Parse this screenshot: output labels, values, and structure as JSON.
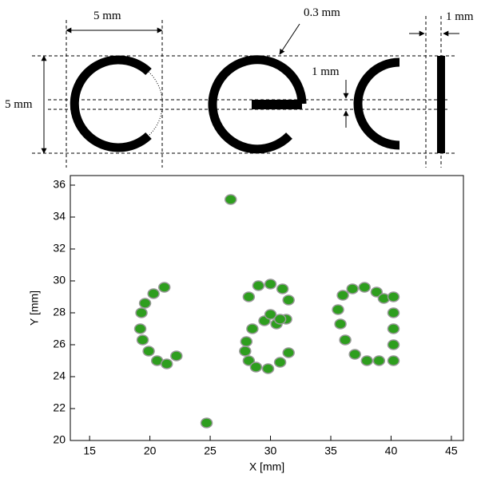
{
  "diagram": {
    "labels": [
      "5 mm",
      "0.3 mm",
      "1 mm",
      "1 mm",
      "5 mm"
    ]
  },
  "chart_data": {
    "type": "scatter",
    "xlabel": "X [mm]",
    "ylabel": "Y [mm]",
    "xlim": [
      13.4,
      46
    ],
    "ylim": [
      20,
      36.6
    ],
    "xticks": [
      15,
      20,
      25,
      30,
      35,
      40,
      45
    ],
    "yticks": [
      20,
      22,
      24,
      26,
      28,
      30,
      32,
      34,
      36
    ],
    "series": [
      {
        "color": "#2e9e1e",
        "x": [
          20.3,
          19.6,
          19.3,
          19.2,
          19.4,
          19.9,
          20.6,
          21.4,
          22.2,
          21.2,
          28.2,
          29.0,
          30.0,
          31.0,
          31.5,
          31.3,
          30.5,
          29.5,
          28.5,
          28.0,
          27.9,
          28.2,
          28.8,
          29.8,
          30.8,
          31.5,
          30.0,
          30.8,
          36.0,
          36.8,
          37.8,
          38.8,
          39.4,
          35.6,
          35.8,
          36.2,
          37.0,
          38.0,
          39.0,
          40.2,
          40.2,
          40.2,
          40.2,
          40.2,
          26.7,
          24.7
        ],
        "y": [
          29.2,
          28.6,
          28.0,
          27.0,
          26.3,
          25.6,
          25.0,
          24.8,
          25.3,
          29.6,
          29.0,
          29.7,
          29.8,
          29.5,
          28.8,
          27.6,
          27.3,
          27.5,
          27.0,
          26.2,
          25.6,
          25.0,
          24.6,
          24.5,
          24.9,
          25.5,
          27.9,
          27.6,
          29.1,
          29.5,
          29.6,
          29.3,
          28.9,
          28.2,
          27.3,
          26.3,
          25.4,
          25.0,
          25.0,
          29.0,
          28.0,
          27.0,
          26.0,
          25.0,
          35.1,
          21.1
        ]
      }
    ]
  }
}
